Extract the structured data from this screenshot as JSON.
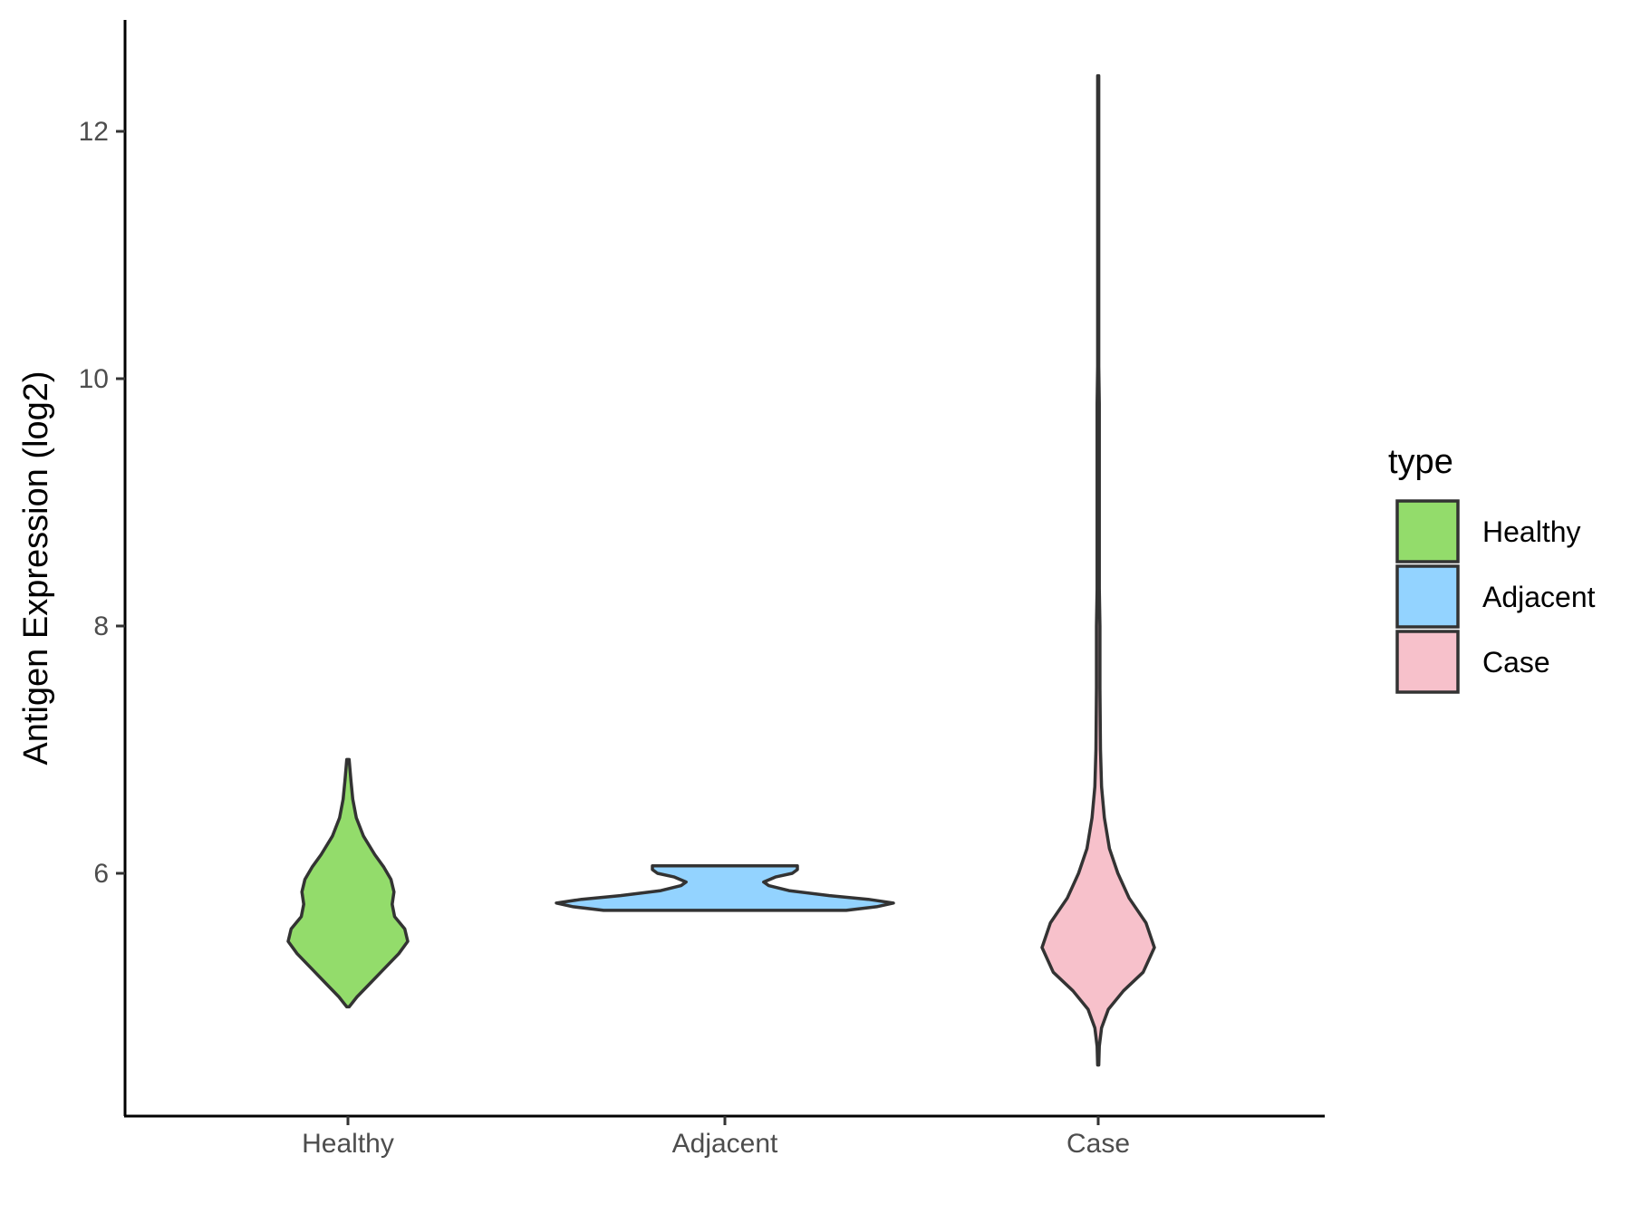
{
  "chart_data": {
    "type": "violin",
    "title": "",
    "xlabel": "",
    "ylabel": "Antigen Expression (log2)",
    "ylim": [
      4.0,
      12.8
    ],
    "yticks": [
      6,
      8,
      10,
      12
    ],
    "grid": false,
    "legend": {
      "title": "type",
      "position": "right",
      "entries": [
        {
          "label": "Healthy",
          "color": "#93DC6B"
        },
        {
          "label": "Adjacent",
          "color": "#93D3FF"
        },
        {
          "label": "Case",
          "color": "#F7C1CB"
        }
      ]
    },
    "categories": [
      "Healthy",
      "Adjacent",
      "Case"
    ],
    "series": [
      {
        "category": "Healthy",
        "color": "#93DC6B",
        "profile": [
          [
            4.92,
            0.02
          ],
          [
            5.0,
            0.15
          ],
          [
            5.1,
            0.35
          ],
          [
            5.2,
            0.55
          ],
          [
            5.35,
            0.85
          ],
          [
            5.45,
            1.0
          ],
          [
            5.55,
            0.95
          ],
          [
            5.65,
            0.78
          ],
          [
            5.75,
            0.74
          ],
          [
            5.85,
            0.77
          ],
          [
            5.95,
            0.72
          ],
          [
            6.05,
            0.6
          ],
          [
            6.15,
            0.45
          ],
          [
            6.3,
            0.26
          ],
          [
            6.45,
            0.14
          ],
          [
            6.6,
            0.08
          ],
          [
            6.75,
            0.05
          ],
          [
            6.92,
            0.02
          ]
        ]
      },
      {
        "category": "Adjacent",
        "color": "#93D3FF",
        "profile": [
          [
            5.7,
            0.72
          ],
          [
            5.73,
            0.9
          ],
          [
            5.76,
            1.0
          ],
          [
            5.79,
            0.85
          ],
          [
            5.82,
            0.62
          ],
          [
            5.86,
            0.38
          ],
          [
            5.9,
            0.26
          ],
          [
            5.93,
            0.23
          ],
          [
            5.97,
            0.3
          ],
          [
            6.0,
            0.4
          ],
          [
            6.03,
            0.43
          ],
          [
            6.06,
            0.43
          ]
        ]
      },
      {
        "category": "Case",
        "color": "#F7C1CB",
        "profile": [
          [
            4.45,
            0.01
          ],
          [
            4.6,
            0.02
          ],
          [
            4.75,
            0.06
          ],
          [
            4.9,
            0.18
          ],
          [
            5.05,
            0.45
          ],
          [
            5.2,
            0.8
          ],
          [
            5.4,
            1.0
          ],
          [
            5.6,
            0.85
          ],
          [
            5.8,
            0.55
          ],
          [
            6.0,
            0.35
          ],
          [
            6.2,
            0.2
          ],
          [
            6.45,
            0.11
          ],
          [
            6.7,
            0.06
          ],
          [
            7.0,
            0.04
          ],
          [
            7.5,
            0.03
          ],
          [
            8.0,
            0.03
          ],
          [
            8.3,
            0.02
          ],
          [
            8.6,
            0.02
          ],
          [
            9.0,
            0.02
          ],
          [
            9.4,
            0.02
          ],
          [
            9.8,
            0.02
          ],
          [
            10.1,
            0.01
          ],
          [
            10.5,
            0.01
          ],
          [
            11.0,
            0.01
          ],
          [
            11.5,
            0.01
          ],
          [
            12.0,
            0.01
          ],
          [
            12.45,
            0.01
          ]
        ]
      }
    ]
  }
}
